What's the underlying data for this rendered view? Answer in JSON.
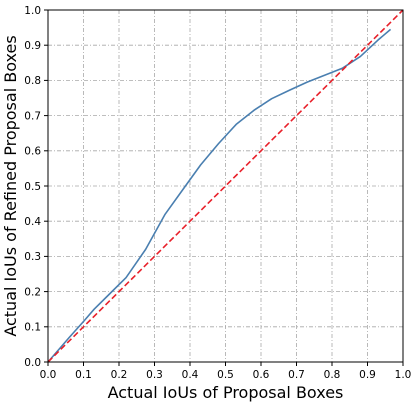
{
  "chart_data": {
    "type": "line",
    "xlabel": "Actual IoUs of Proposal Boxes",
    "ylabel": "Actual IoUs of Refined Proposal Boxes",
    "xlim": [
      0.0,
      1.0
    ],
    "ylim": [
      0.0,
      1.0
    ],
    "grid": true,
    "xticks": [
      "0.0",
      "0.1",
      "0.2",
      "0.3",
      "0.4",
      "0.5",
      "0.6",
      "0.7",
      "0.8",
      "0.9",
      "1.0"
    ],
    "yticks": [
      "0.0",
      "0.1",
      "0.2",
      "0.3",
      "0.4",
      "0.5",
      "0.6",
      "0.7",
      "0.8",
      "0.9",
      "1.0"
    ],
    "series": [
      {
        "style": "solid",
        "color": "#4a7fb0",
        "x": [
          0.0,
          0.06,
          0.1,
          0.13,
          0.17,
          0.22,
          0.275,
          0.33,
          0.38,
          0.43,
          0.48,
          0.53,
          0.58,
          0.63,
          0.68,
          0.73,
          0.78,
          0.83,
          0.88,
          0.93,
          0.965
        ],
        "y": [
          0.0,
          0.07,
          0.115,
          0.15,
          0.19,
          0.24,
          0.32,
          0.42,
          0.49,
          0.56,
          0.62,
          0.675,
          0.715,
          0.748,
          0.772,
          0.795,
          0.815,
          0.835,
          0.868,
          0.915,
          0.945
        ]
      },
      {
        "style": "dashed",
        "color": "#e8202a",
        "x": [
          0.0,
          1.0
        ],
        "y": [
          0.0,
          1.0
        ]
      }
    ]
  }
}
